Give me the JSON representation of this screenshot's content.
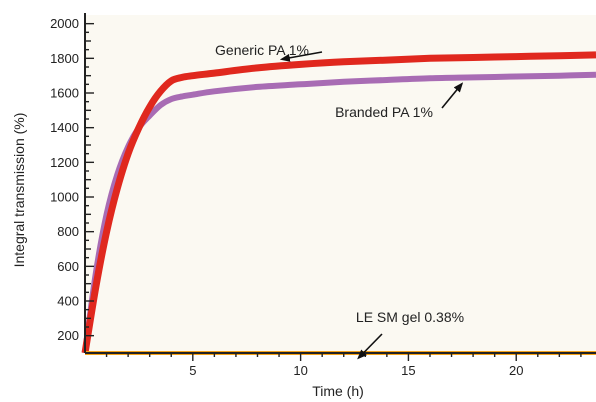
{
  "chart_data": {
    "type": "line",
    "xlabel": "Time (h)",
    "ylabel": "Integral transmission (%)",
    "xlim": [
      0,
      23.7
    ],
    "ylim": [
      100,
      2050
    ],
    "x_ticks": [
      5,
      10,
      15,
      20
    ],
    "y_ticks": [
      200,
      400,
      600,
      800,
      1000,
      1200,
      1400,
      1600,
      1800,
      2000
    ],
    "grid": false,
    "colors": {
      "background": "#fbf9f2",
      "generic": "#e0281e",
      "branded": "#a86cb4",
      "gel": "#f5a31a",
      "axis": "#222222"
    },
    "series": [
      {
        "name": "Generic PA 1%",
        "x": [
          0,
          0.5,
          1,
          1.5,
          2,
          2.5,
          3,
          3.5,
          4,
          4.5,
          5,
          6,
          8,
          10,
          12,
          14,
          16,
          18,
          20,
          22,
          23.7
        ],
        "values": [
          100,
          480,
          800,
          1050,
          1250,
          1400,
          1520,
          1610,
          1670,
          1690,
          1700,
          1715,
          1745,
          1765,
          1780,
          1790,
          1800,
          1805,
          1810,
          1815,
          1820
        ]
      },
      {
        "name": "Branded PA 1%",
        "x": [
          0,
          0.5,
          1,
          1.5,
          2,
          2.5,
          3,
          3.5,
          4,
          4.5,
          5,
          6,
          8,
          10,
          12,
          14,
          16,
          18,
          20,
          22,
          23.7
        ],
        "values": [
          100,
          560,
          900,
          1130,
          1290,
          1400,
          1470,
          1530,
          1565,
          1580,
          1590,
          1610,
          1635,
          1650,
          1665,
          1675,
          1685,
          1690,
          1695,
          1700,
          1705
        ]
      },
      {
        "name": "LE SM gel 0.38%",
        "x": [
          0,
          23.7
        ],
        "values": [
          100,
          100
        ]
      }
    ],
    "annotations": [
      {
        "text": "Generic PA 1%",
        "series": "Generic PA 1%",
        "arrow_x": 9.5
      },
      {
        "text": "Branded PA 1%",
        "series": "Branded PA 1%",
        "arrow_x": 17.2
      },
      {
        "text": "LE SM gel 0.38%",
        "series": "LE SM gel 0.38%",
        "arrow_x": 12.5
      }
    ]
  }
}
